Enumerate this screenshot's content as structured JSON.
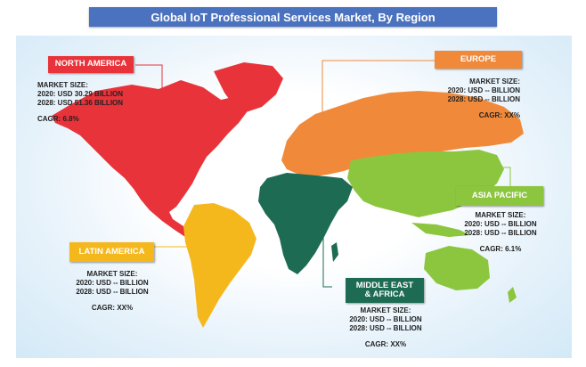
{
  "title": "Global IoT Professional Services Market, By Region",
  "chart_data": {
    "type": "map",
    "regions": [
      {
        "key": "north_america",
        "name": "NORTH AMERICA",
        "color": "#e8333a",
        "market_size_label": "MARKET SIZE:",
        "market_2020": "2020: USD 30.29 BILLION",
        "market_2028": "2028: USD 51.36 BILLION",
        "cagr": "CAGR: 6.8%"
      },
      {
        "key": "europe",
        "name": "EUROPE",
        "color": "#f08a3a",
        "market_size_label": "MARKET SIZE:",
        "market_2020": "2020: USD -- BILLION",
        "market_2028": "2028: USD -- BILLION",
        "cagr": "CAGR: XX%"
      },
      {
        "key": "asia_pacific",
        "name": "ASIA PACIFIC",
        "color": "#8cc63f",
        "market_size_label": "MARKET SIZE:",
        "market_2020": "2020: USD -- BILLION",
        "market_2028": "2028: USD -- BILLION",
        "cagr": "CAGR: 6.1%"
      },
      {
        "key": "latin_america",
        "name": "LATIN AMERICA",
        "color": "#f5b81c",
        "market_size_label": "MARKET SIZE:",
        "market_2020": "2020: USD -- BILLION",
        "market_2028": "2028: USD -- BILLION",
        "cagr": "CAGR: XX%"
      },
      {
        "key": "mea",
        "name": "MIDDLE EAST & AFRICA",
        "name_line1": "MIDDLE EAST",
        "name_line2": "& AFRICA",
        "color": "#1c6b52",
        "market_size_label": "MARKET SIZE:",
        "market_2020": "2020: USD -- BILLION",
        "market_2028": "2028: USD -- BILLION",
        "cagr": "CAGR: XX%"
      }
    ]
  }
}
